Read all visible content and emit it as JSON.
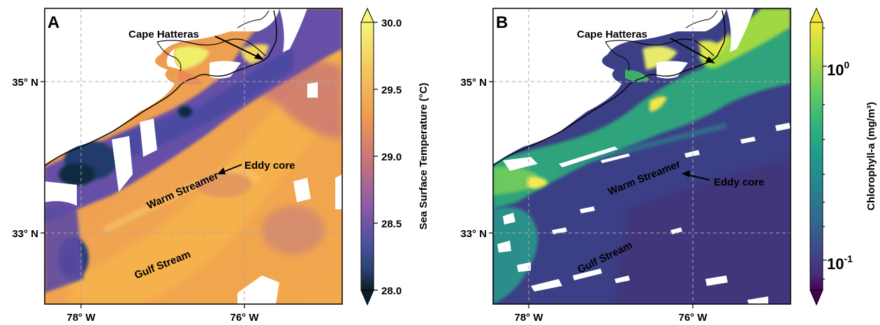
{
  "panels": [
    {
      "letter": "A",
      "labels": {
        "cape": "Cape Hatteras",
        "warm": "Warm Streamer",
        "eddy": "Eddy core",
        "gulf": "Gulf Stream"
      },
      "axes": {
        "lat_ticks": [
          "35° N",
          "33° N"
        ],
        "lon_ticks": [
          "78° W",
          "76° W"
        ]
      },
      "colorbar": {
        "label": "Sea Surface Temperature (°C)",
        "ticks": [
          "30.0",
          "29.5",
          "29.0",
          "28.5",
          "28.0"
        ],
        "colormap": [
          "#f5f57a",
          "#f2b45a",
          "#f28a4f",
          "#c86a7a",
          "#8a5aa6",
          "#4d4fa4",
          "#283c70",
          "#0b1e2c"
        ]
      }
    },
    {
      "letter": "B",
      "labels": {
        "cape": "Cape Hatteras",
        "warm": "Warm Streamer",
        "eddy": "Eddy core",
        "gulf": "Gulf Stream"
      },
      "axes": {
        "lat_ticks": [
          "35° N",
          "33° N"
        ],
        "lon_ticks": [
          "78° W",
          "76° W"
        ]
      },
      "colorbar": {
        "label": "Chlorophyll-a (mg/m³)",
        "tick_base": "10",
        "tick_top_exp": "0",
        "tick_bottom_exp": "-1",
        "colormap": [
          "#f6e63b",
          "#bcdf3f",
          "#6ccb5e",
          "#2fb47c",
          "#1f9a8a",
          "#26828e",
          "#31688e",
          "#3e4989",
          "#472d7b",
          "#440154"
        ]
      }
    }
  ],
  "colors": {
    "sst_shelf": "#5a4aa6",
    "sst_streamer": "#f1a04f",
    "sst_gulf": "#f3a24c",
    "chl_offshore": "#3b3f86",
    "chl_shelf": "#2fa37c",
    "chl_coast": "#dfe84a"
  }
}
